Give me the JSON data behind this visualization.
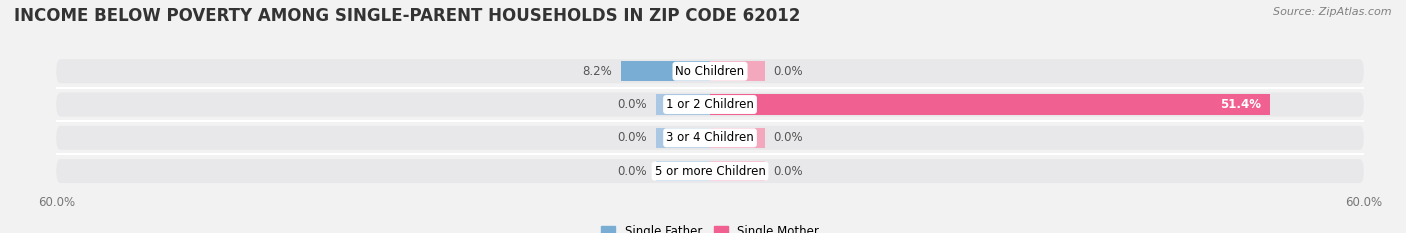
{
  "title": "INCOME BELOW POVERTY AMONG SINGLE-PARENT HOUSEHOLDS IN ZIP CODE 62012",
  "source": "Source: ZipAtlas.com",
  "categories": [
    "No Children",
    "1 or 2 Children",
    "3 or 4 Children",
    "5 or more Children"
  ],
  "father_values": [
    8.2,
    0.0,
    0.0,
    0.0
  ],
  "mother_values": [
    0.0,
    51.4,
    0.0,
    0.0
  ],
  "father_color": "#7aadd4",
  "father_color_light": "#aac8e4",
  "mother_color": "#f06090",
  "mother_color_light": "#f4a8be",
  "father_label": "Single Father",
  "mother_label": "Single Mother",
  "xlim": [
    -60,
    60
  ],
  "bar_height": 0.72,
  "row_bg_color": "#e8e8ea",
  "fig_bg_color": "#f2f2f2",
  "title_fontsize": 12,
  "label_fontsize": 8.5,
  "tick_fontsize": 8.5,
  "source_fontsize": 8,
  "min_stub": 5.0
}
